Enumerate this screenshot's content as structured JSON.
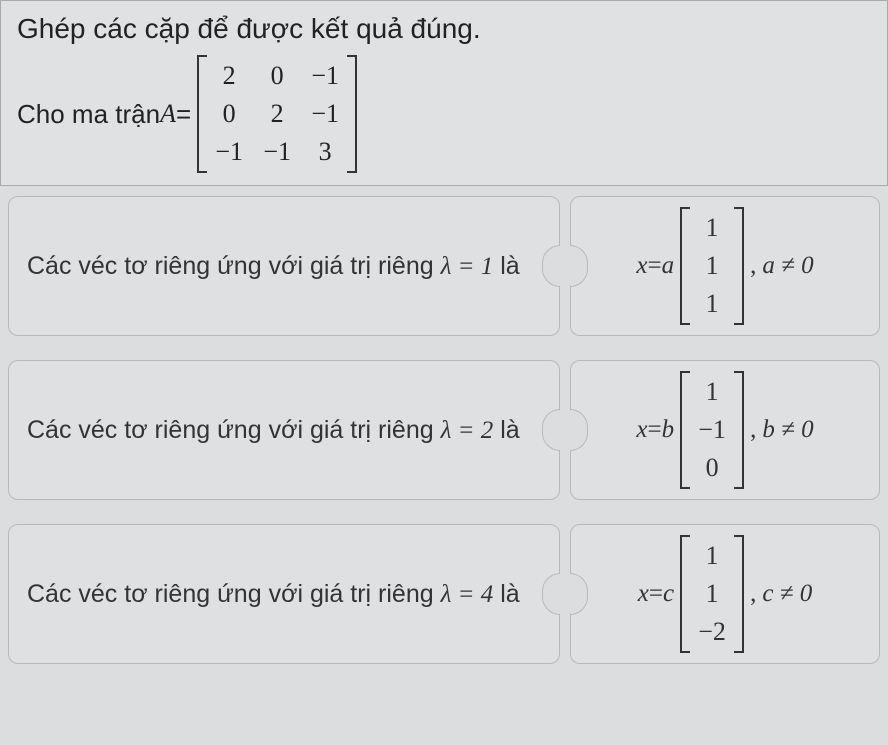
{
  "colors": {
    "page_bg": "#dcdddf",
    "card_bg": "#dfe0e2",
    "card_border": "#b8b9bb",
    "text": "#222222",
    "bracket": "#333333"
  },
  "typography": {
    "base_fontsize": 26,
    "title_fontsize": 28,
    "card_fontsize": 25,
    "math_family": "Times New Roman"
  },
  "prompt": {
    "title": "Ghép các cặp để được kết quả đúng.",
    "matrix_label_pre": "Cho ma trận  ",
    "matrix_var": "A",
    "matrix_eq": " = ",
    "matrix": {
      "rows": 3,
      "cols": 3,
      "cells": [
        "2",
        "0",
        "−1",
        "0",
        "2",
        "−1",
        "−1",
        "−1",
        "3"
      ]
    }
  },
  "pairs": [
    {
      "left_pre": "Các véc tơ riêng ứng với giá trị riêng  ",
      "left_lambda": "λ = 1",
      "left_post": "  là",
      "right_var": "x",
      "right_eq": " = ",
      "right_coef": "a",
      "vector": [
        "1",
        "1",
        "1"
      ],
      "cond_var": "a",
      "cond": " ≠ 0"
    },
    {
      "left_pre": "Các véc tơ riêng ứng với giá trị riêng  ",
      "left_lambda": "λ = 2",
      "left_post": "  là",
      "right_var": "x",
      "right_eq": " = ",
      "right_coef": "b",
      "vector": [
        "1",
        "−1",
        "0"
      ],
      "cond_var": "b",
      "cond": " ≠ 0"
    },
    {
      "left_pre": "Các véc tơ riêng ứng với giá trị riêng  ",
      "left_lambda": "λ = 4",
      "left_post": "  là",
      "right_var": "x",
      "right_eq": " = ",
      "right_coef": "c",
      "vector": [
        "1",
        "1",
        "−2"
      ],
      "cond_var": "c",
      "cond": " ≠ 0"
    }
  ]
}
